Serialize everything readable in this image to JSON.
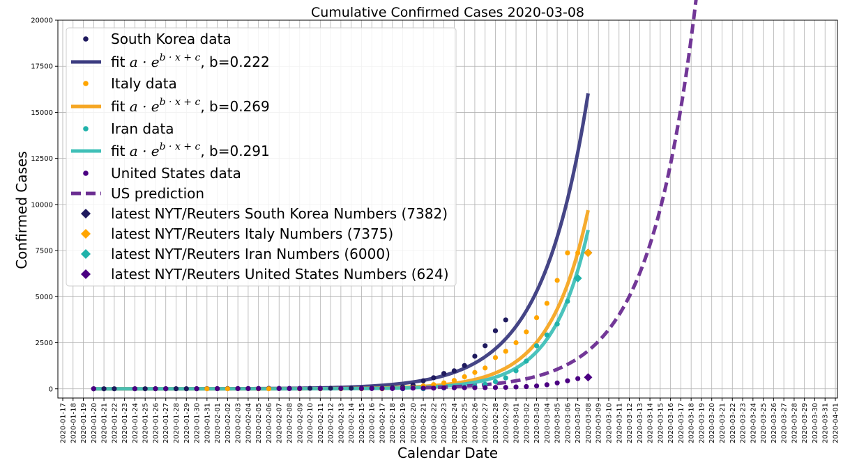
{
  "chart_data": {
    "type": "line",
    "title": "Cumulative Confirmed Cases 2020-03-08",
    "xlabel": "Calendar Date",
    "ylabel": "Confirmed Cases",
    "ylim": [
      -500,
      20000
    ],
    "yticks": [
      0,
      2500,
      5000,
      7500,
      10000,
      12500,
      15000,
      17500,
      20000
    ],
    "xlim_days": [
      0,
      75
    ],
    "x_start_date": "2020-01-17",
    "xticks": [
      "2020-01-17",
      "2020-01-18",
      "2020-01-19",
      "2020-01-20",
      "2020-01-21",
      "2020-01-22",
      "2020-01-23",
      "2020-01-24",
      "2020-01-25",
      "2020-01-26",
      "2020-01-27",
      "2020-01-28",
      "2020-01-29",
      "2020-01-30",
      "2020-01-31",
      "2020-02-01",
      "2020-02-02",
      "2020-02-03",
      "2020-02-04",
      "2020-02-05",
      "2020-02-06",
      "2020-02-07",
      "2020-02-08",
      "2020-02-09",
      "2020-02-10",
      "2020-02-11",
      "2020-02-12",
      "2020-02-13",
      "2020-02-14",
      "2020-02-15",
      "2020-02-16",
      "2020-02-17",
      "2020-02-18",
      "2020-02-19",
      "2020-02-20",
      "2020-02-21",
      "2020-02-22",
      "2020-02-23",
      "2020-02-24",
      "2020-02-25",
      "2020-02-26",
      "2020-02-27",
      "2020-02-28",
      "2020-02-29",
      "2020-03-01",
      "2020-03-02",
      "2020-03-03",
      "2020-03-04",
      "2020-03-05",
      "2020-03-06",
      "2020-03-07",
      "2020-03-08",
      "2020-03-09",
      "2020-03-10",
      "2020-03-11",
      "2020-03-12",
      "2020-03-13",
      "2020-03-14",
      "2020-03-15",
      "2020-03-16",
      "2020-03-17",
      "2020-03-18",
      "2020-03-19",
      "2020-03-20",
      "2020-03-21",
      "2020-03-22",
      "2020-03-23",
      "2020-03-24",
      "2020-03-25",
      "2020-03-26",
      "2020-03-27",
      "2020-03-28",
      "2020-03-29",
      "2020-03-30",
      "2020-03-31",
      "2020-04-01"
    ],
    "grid": true,
    "legend_position": "top-left",
    "series": [
      {
        "name": "South Korea data",
        "kind": "points",
        "color": "#1f1a5e",
        "x": [
          3,
          4,
          5,
          7,
          8,
          9,
          10,
          11,
          12,
          13,
          14,
          15,
          16,
          17,
          18,
          19,
          20,
          21,
          22,
          23,
          24,
          25,
          26,
          27,
          28,
          29,
          30,
          31,
          32,
          33,
          34,
          35,
          36,
          37,
          38,
          39,
          40,
          41,
          42,
          43
        ],
        "y": [
          1,
          1,
          1,
          2,
          2,
          3,
          4,
          4,
          4,
          4,
          11,
          12,
          15,
          15,
          16,
          19,
          23,
          24,
          24,
          25,
          27,
          28,
          28,
          28,
          28,
          29,
          30,
          31,
          51,
          104,
          204,
          433,
          602,
          833,
          977,
          1261,
          1766,
          2337,
          3150,
          3736
        ]
      },
      {
        "name": "fit a·e^(b·x+c), b=0.222",
        "kind": "fit",
        "color": "#3b3b80",
        "width": 5,
        "a": 1,
        "b": 0.222,
        "c": -1.64,
        "x_from": 3,
        "x_to": 51
      },
      {
        "name": "Italy data",
        "kind": "points",
        "color": "#ffa500",
        "x": [
          14,
          16,
          19,
          20,
          23,
          25,
          27,
          29,
          31,
          33,
          34,
          35,
          36,
          37,
          38,
          39,
          40,
          41,
          42,
          43,
          44,
          45,
          46,
          47,
          48,
          49,
          50
        ],
        "y": [
          2,
          2,
          2,
          3,
          3,
          3,
          3,
          3,
          3,
          20,
          62,
          155,
          229,
          322,
          453,
          655,
          888,
          1128,
          1694,
          2036,
          2502,
          3089,
          3858,
          4636,
          5883,
          7375,
          7375
        ]
      },
      {
        "name": "fit a·e^(b·x+c), b=0.269",
        "kind": "fit",
        "color": "#f5a623",
        "width": 5,
        "a": 1,
        "b": 0.269,
        "c": -4.54,
        "x_from": 3,
        "x_to": 51
      },
      {
        "name": "Iran data",
        "kind": "points",
        "color": "#20b2aa",
        "x": [
          33,
          35,
          37,
          39,
          40,
          41,
          42,
          43,
          44,
          45,
          46,
          47,
          48,
          49,
          50
        ],
        "y": [
          2,
          5,
          43,
          95,
          139,
          245,
          388,
          593,
          978,
          1501,
          2336,
          2922,
          3513,
          4747,
          6000
        ]
      },
      {
        "name": "fit a·e^(b·x+c), b=0.291",
        "kind": "fit",
        "color": "#40c0b8",
        "width": 5,
        "a": 1,
        "b": 0.291,
        "c": -5.78,
        "x_from": 3,
        "x_to": 51
      },
      {
        "name": "United States data",
        "kind": "points",
        "color": "#4b0082",
        "x": [
          3,
          7,
          9,
          10,
          13,
          15,
          17,
          18,
          19,
          21,
          22,
          23,
          25,
          27,
          29,
          30,
          31,
          32,
          33,
          34,
          35,
          36,
          37,
          38,
          39,
          40,
          41,
          42,
          43,
          44,
          45,
          46,
          47,
          48,
          49,
          50
        ],
        "y": [
          1,
          2,
          5,
          5,
          6,
          8,
          11,
          11,
          12,
          12,
          12,
          12,
          13,
          14,
          15,
          15,
          15,
          15,
          15,
          35,
          35,
          35,
          53,
          53,
          59,
          60,
          62,
          70,
          76,
          101,
          122,
          153,
          221,
          319,
          435,
          554
        ]
      },
      {
        "name": "US prediction",
        "kind": "fit",
        "color": "#6a2c91",
        "width": 5,
        "dashed": true,
        "a": 1,
        "b": 0.222,
        "c": -3.69,
        "x_from": 35,
        "x_to": 62
      },
      {
        "name": "latest NYT/Reuters South Korea Numbers (7382)",
        "kind": "marker",
        "color": "#1f1a5e",
        "x": 51,
        "y": 7382
      },
      {
        "name": "latest NYT/Reuters Italy Numbers (7375)",
        "kind": "marker",
        "color": "#ffa500",
        "x": 51,
        "y": 7375
      },
      {
        "name": "latest NYT/Reuters Iran Numbers (6000)",
        "kind": "marker",
        "color": "#20b2aa",
        "x": 50,
        "y": 6000
      },
      {
        "name": "latest NYT/Reuters United States Numbers (624)",
        "kind": "marker",
        "color": "#4b0082",
        "x": 51,
        "y": 624
      }
    ],
    "legend": [
      {
        "label": "South Korea data",
        "style": "point",
        "color": "#1f1a5e"
      },
      {
        "label": "fit",
        "suffix": ", b=0.222",
        "style": "line",
        "color": "#3b3b80",
        "formula": true
      },
      {
        "label": "Italy data",
        "style": "point",
        "color": "#ffa500"
      },
      {
        "label": "fit",
        "suffix": ", b=0.269",
        "style": "line",
        "color": "#f5a623",
        "formula": true
      },
      {
        "label": "Iran data",
        "style": "point",
        "color": "#20b2aa"
      },
      {
        "label": "fit",
        "suffix": ", b=0.291",
        "style": "line",
        "color": "#40c0b8",
        "formula": true
      },
      {
        "label": "United States data",
        "style": "point",
        "color": "#4b0082"
      },
      {
        "label": "US prediction",
        "style": "dash",
        "color": "#6a2c91"
      },
      {
        "label": "latest NYT/Reuters South Korea Numbers (7382)",
        "style": "diamond",
        "color": "#1f1a5e"
      },
      {
        "label": "latest NYT/Reuters Italy Numbers (7375)",
        "style": "diamond",
        "color": "#ffa500"
      },
      {
        "label": "latest NYT/Reuters Iran Numbers (6000)",
        "style": "diamond",
        "color": "#20b2aa"
      },
      {
        "label": "latest NYT/Reuters United States Numbers (624)",
        "style": "diamond",
        "color": "#4b0082"
      }
    ],
    "formula_text": "a · e",
    "formula_exp": "b · x + c"
  }
}
